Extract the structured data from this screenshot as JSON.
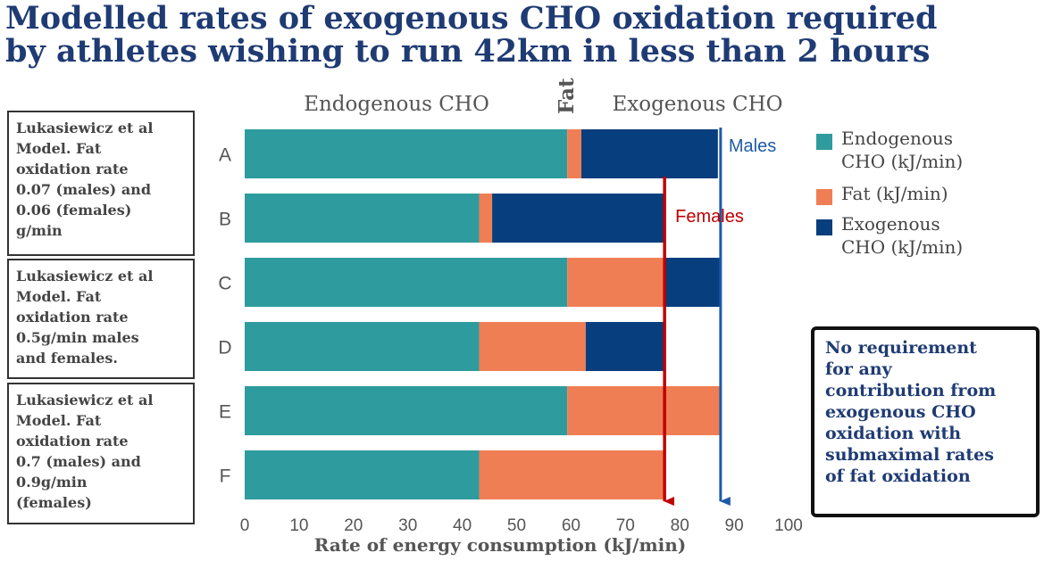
{
  "title": {
    "line1": "Modelled rates of exogenous CHO oxidation required",
    "line2": "by athletes wishing to run 42km in less than 2 hours"
  },
  "chart_data": {
    "type": "bar",
    "orientation": "horizontal",
    "stacked": true,
    "categories": [
      "A",
      "B",
      "C",
      "D",
      "E",
      "F"
    ],
    "series": [
      {
        "name": "Endogenous CHO (kJ/min)",
        "color": "#2e9b9e",
        "values": [
          59.3,
          43.1,
          59.3,
          43.1,
          59.3,
          43.1
        ]
      },
      {
        "name": "Fat (kJ/min)",
        "color": "#ef7e55",
        "values": [
          2.6,
          2.4,
          18.1,
          19.6,
          28.4,
          34.1
        ]
      },
      {
        "name": "Exogenous CHO (kJ/min)",
        "color": "#063e7e",
        "values": [
          25.1,
          31.7,
          10.1,
          14.5,
          0,
          0
        ]
      }
    ],
    "xlabel": "Rate of energy consumption (kJ/min)",
    "xlim": [
      0,
      100
    ],
    "xticks": [
      "0",
      "10",
      "20",
      "30",
      "40",
      "50",
      "60",
      "70",
      "80",
      "90",
      "100"
    ],
    "column_headers": {
      "endogenous": "Endogenous CHO",
      "fat": "Fat",
      "exogenous": "Exogenous CHO"
    },
    "reference_lines": [
      {
        "label": "Males",
        "value": 87.5,
        "color": "#1e5aa8"
      },
      {
        "label": "Females",
        "value": 77.2,
        "color": "#c00000"
      }
    ],
    "legend": {
      "position": "right",
      "items": [
        {
          "line1": "Endogenous",
          "line2": "CHO (kJ/min)",
          "color": "#2e9b9e"
        },
        {
          "line1": "Fat (kJ/min)",
          "line2": "",
          "color": "#ef7e55"
        },
        {
          "line1": "Exogenous",
          "line2": "CHO (kJ/min)",
          "color": "#063e7e"
        }
      ]
    }
  },
  "notes": [
    {
      "lines": [
        "Lukasiewicz et al",
        "Model. Fat",
        "oxidation rate",
        "0.07 (males) and",
        "0.06 (females)",
        "g/min"
      ]
    },
    {
      "lines": [
        "Lukasiewicz et al",
        "Model. Fat",
        "oxidation rate",
        "0.5g/min males",
        "and females."
      ]
    },
    {
      "lines": [
        "Lukasiewicz et al",
        "Model. Fat",
        "oxidation rate",
        "0.7 (males) and",
        "0.9g/min",
        "(females)"
      ]
    }
  ],
  "callout": {
    "lines": [
      "No requirement",
      "for any",
      "contribution from",
      "exogenous CHO",
      "oxidation with",
      "submaximal rates",
      "of fat oxidation"
    ]
  }
}
